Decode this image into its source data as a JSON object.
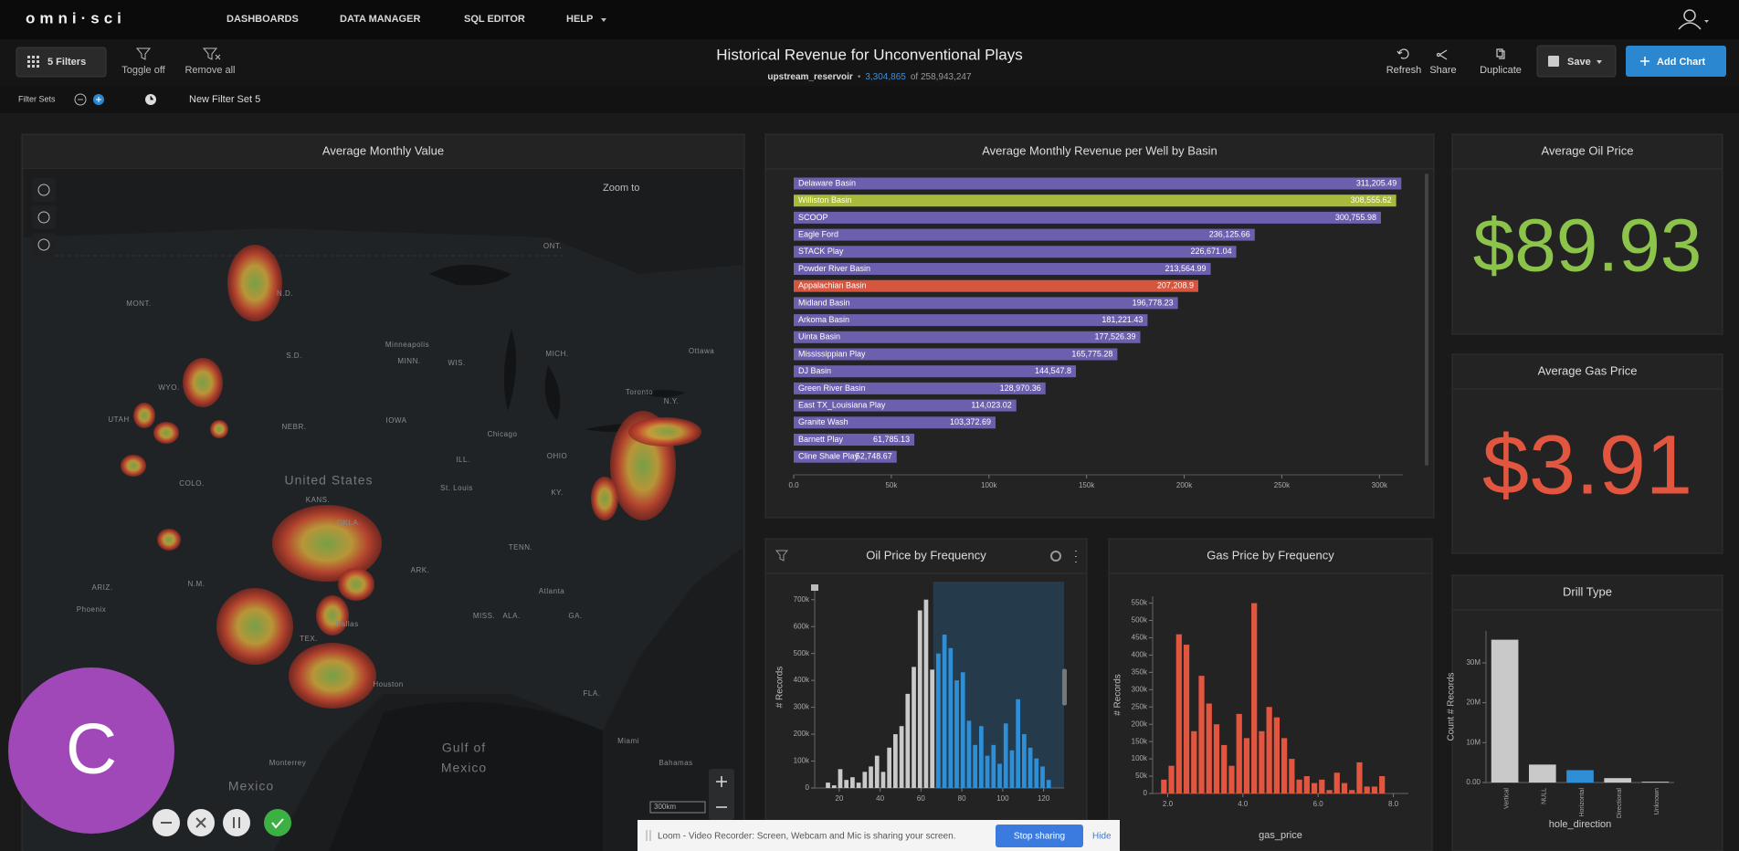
{
  "nav": {
    "brand": "omni·sci",
    "items": [
      "DASHBOARDS",
      "DATA MANAGER",
      "SQL EDITOR",
      "HELP"
    ]
  },
  "toolbar": {
    "filters": "5 Filters",
    "toggle": "Toggle off",
    "remove": "Remove all",
    "title": "Historical Revenue for Unconventional Plays",
    "table": "upstream_reservoir",
    "separator": "•",
    "count": "3,304,865",
    "total": "of 258,943,247",
    "actions": [
      "Refresh",
      "Share",
      "Duplicate"
    ],
    "save": "Save",
    "add": "Add Chart"
  },
  "filter_bar": {
    "label": "Filter Sets",
    "set": "New Filter Set 5"
  },
  "map": {
    "title": "Average Monthly Value",
    "zoom": "Zoom to",
    "scale": "300km",
    "labels": [
      "MONT.",
      "N.D.",
      "S.D.",
      "WYO.",
      "NEBR.",
      "IOWA",
      "Minneapolis",
      "MINN.",
      "WIS.",
      "MICH.",
      "ILL.",
      "Chicago",
      "OHIO",
      "Toronto",
      "Ottawa",
      "ONT.",
      "United States",
      "St. Louis",
      "KANS.",
      "COLO.",
      "UTAH",
      "ARIZ.",
      "N.M.",
      "Phoenix",
      "OKLA.",
      "ARK.",
      "TEX.",
      "Dallas",
      "Houston",
      "MISS.",
      "ALA.",
      "Atlanta",
      "GA.",
      "FLA.",
      "Miami",
      "Bahamas",
      "Gulf of",
      "Mexico",
      "Monterrey",
      "Mexico",
      "KY.",
      "TENN.",
      "N.Y."
    ]
  },
  "kpis": [
    {
      "title": "Average Oil Price",
      "value": "$89.93",
      "color": "#8cc34b"
    },
    {
      "title": "Average Gas Price",
      "value": "$3.91",
      "color": "#e2553f"
    }
  ],
  "chart_data": [
    {
      "type": "bar",
      "orientation": "horizontal",
      "title": "Average Monthly Revenue per Well by Basin",
      "categories": [
        "Delaware Basin",
        "Williston Basin",
        "SCOOP",
        "Eagle Ford",
        "STACK Play",
        "Powder River Basin",
        "Appalachian Basin",
        "Midland Basin",
        "Arkoma Basin",
        "Uinta Basin",
        "Mississippian Play",
        "DJ Basin",
        "Green River Basin",
        "East TX_Louisiana Play",
        "Granite Wash",
        "Barnett Play",
        "Cline Shale Play"
      ],
      "values": [
        311205.49,
        308555.62,
        300755.98,
        236125.66,
        226671.04,
        213564.99,
        207208.9,
        196778.23,
        181221.43,
        177526.39,
        165775.28,
        144547.8,
        128970.36,
        114023.02,
        103372.69,
        61785.13,
        52748.67
      ],
      "value_labels": [
        "311,205.49",
        "308,555.62",
        "300,755.98",
        "236,125.66",
        "226,671.04",
        "213,564.99",
        "207,208.9",
        "196,778.23",
        "181,221.43",
        "177,526.39",
        "165,775.28",
        "144,547.8",
        "128,970.36",
        "114,023.02",
        "103,372.69",
        "61,785.13",
        "52,748.67"
      ],
      "colors": [
        "#6c5fae",
        "#a9b93c",
        "#6c5fae",
        "#6c5fae",
        "#6c5fae",
        "#6c5fae",
        "#d5553f",
        "#6c5fae",
        "#6c5fae",
        "#6c5fae",
        "#6c5fae",
        "#6c5fae",
        "#6c5fae",
        "#6c5fae",
        "#6c5fae",
        "#6c5fae",
        "#6c5fae"
      ],
      "xlim": [
        0,
        312000
      ],
      "xticks": [
        {
          "value": 0,
          "label": "0.0"
        },
        {
          "value": 50000,
          "label": "50k"
        },
        {
          "value": 100000,
          "label": "100k"
        },
        {
          "value": 150000,
          "label": "150k"
        },
        {
          "value": 200000,
          "label": "200k"
        },
        {
          "value": 250000,
          "label": "250k"
        },
        {
          "value": 300000,
          "label": "300k"
        }
      ]
    },
    {
      "type": "histogram",
      "title": "Oil Price by Frequency",
      "ylabel": "# Records",
      "bins": [
        13,
        16,
        19,
        22,
        25,
        28,
        31,
        34,
        37,
        40,
        43,
        46,
        49,
        52,
        55,
        58,
        61,
        64,
        67,
        70,
        73,
        76,
        79,
        82,
        85,
        88,
        91,
        94,
        97,
        100,
        103,
        106,
        109,
        112,
        115,
        118,
        121,
        124
      ],
      "values": [
        20000,
        10000,
        70000,
        30000,
        40000,
        20000,
        60000,
        80000,
        120000,
        60000,
        150000,
        200000,
        230000,
        350000,
        450000,
        660000,
        700000,
        440000,
        500000,
        570000,
        520000,
        400000,
        430000,
        250000,
        160000,
        230000,
        120000,
        160000,
        90000,
        240000,
        140000,
        330000,
        200000,
        150000,
        110000,
        80000,
        30000
      ],
      "color": "#c9c9c9",
      "selected_color": "#2f8fd6",
      "selection": [
        66,
        130
      ],
      "xlim": [
        8,
        130
      ],
      "xticks": [
        20,
        40,
        60,
        80,
        100,
        120
      ],
      "ylim": [
        0,
        750000
      ],
      "yticks": [
        0,
        {
          "value": 100000,
          "label": "100k"
        },
        {
          "value": 200000,
          "label": "200k"
        },
        {
          "value": 300000,
          "label": "300k"
        },
        {
          "value": 400000,
          "label": "400k"
        },
        {
          "value": 500000,
          "label": "500k"
        },
        {
          "value": 600000,
          "label": "600k"
        },
        {
          "value": 700000,
          "label": "700k"
        }
      ]
    },
    {
      "type": "histogram",
      "title": "Gas Price by Frequency",
      "ylabel": "# Records",
      "xlabel": "gas_price",
      "bins": [
        1.8,
        2.0,
        2.2,
        2.4,
        2.6,
        2.8,
        3.0,
        3.2,
        3.4,
        3.6,
        3.8,
        4.0,
        4.2,
        4.4,
        4.6,
        4.8,
        5.0,
        5.2,
        5.4,
        5.6,
        5.8,
        6.0,
        6.2,
        6.4,
        6.6,
        6.8,
        7.0,
        7.2,
        7.4,
        7.6,
        7.8
      ],
      "values": [
        40000,
        80000,
        460000,
        430000,
        180000,
        340000,
        260000,
        200000,
        140000,
        80000,
        230000,
        160000,
        550000,
        180000,
        250000,
        220000,
        160000,
        100000,
        40000,
        50000,
        30000,
        40000,
        10000,
        60000,
        30000,
        10000,
        90000,
        20000,
        20000,
        50000
      ],
      "color": "#e2553f",
      "xlim": [
        1.6,
        8.4
      ],
      "xticks": [
        {
          "value": 2,
          "label": "2.0"
        },
        {
          "value": 4,
          "label": "4.0"
        },
        {
          "value": 6,
          "label": "6.0"
        },
        {
          "value": 8,
          "label": "8.0"
        }
      ],
      "ylim": [
        0,
        570000
      ],
      "yticks": [
        0,
        {
          "value": 50000,
          "label": "50k"
        },
        {
          "value": 100000,
          "label": "100k"
        },
        {
          "value": 150000,
          "label": "150k"
        },
        {
          "value": 200000,
          "label": "200k"
        },
        {
          "value": 250000,
          "label": "250k"
        },
        {
          "value": 300000,
          "label": "300k"
        },
        {
          "value": 350000,
          "label": "350k"
        },
        {
          "value": 400000,
          "label": "400k"
        },
        {
          "value": 450000,
          "label": "450k"
        },
        {
          "value": 500000,
          "label": "500k"
        },
        {
          "value": 550000,
          "label": "550k"
        }
      ]
    },
    {
      "type": "bar",
      "orientation": "vertical",
      "title": "Drill Type",
      "ylabel": "Count # Records",
      "xlabel": "hole_direction",
      "categories": [
        "Vertical",
        "NULL",
        "Horizontal",
        "Directional",
        "Unknown"
      ],
      "values": [
        35800000,
        4500000,
        3100000,
        1100000,
        200000
      ],
      "colors": [
        "#c9c9c9",
        "#c9c9c9",
        "#2f8fd6",
        "#c9c9c9",
        "#c9c9c9"
      ],
      "ylim": [
        0,
        38000000
      ],
      "yticks": [
        {
          "value": 0,
          "label": "0.00"
        },
        {
          "value": 10000000,
          "label": "10M"
        },
        {
          "value": 20000000,
          "label": "20M"
        },
        {
          "value": 30000000,
          "label": "30M"
        }
      ]
    }
  ],
  "overlay": {
    "avatar": "C",
    "share_text": "Loom - Video Recorder: Screen, Webcam and Mic is sharing your screen.",
    "stop": "Stop sharing",
    "hide": "Hide"
  }
}
